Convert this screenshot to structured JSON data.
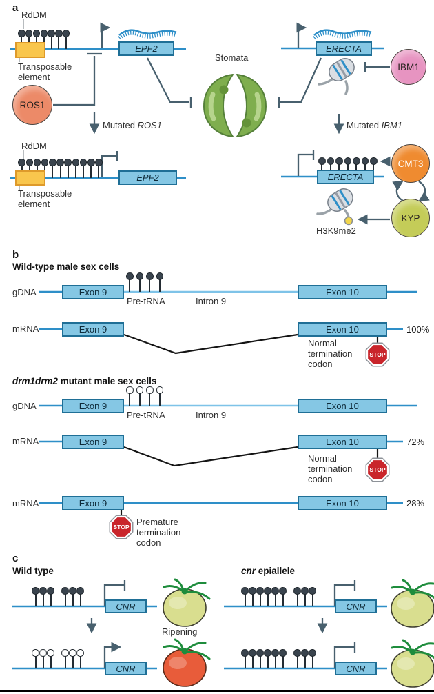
{
  "figure": {
    "panel_a": {
      "label": "a",
      "rddm_label": "RdDM",
      "transposable_element_label": "Transposable element",
      "epf2_gene": "EPF2",
      "erecta_gene": "ERECTA",
      "stomata_label": "Stomata",
      "ros1": "ROS1",
      "ibm1": "IBM1",
      "cmt3": "CMT3",
      "kyp": "KYP",
      "h3k9me2_label": "H3K9me2",
      "mutated_prefix": "Mutated ",
      "mutated_ros1_gene": "ROS1",
      "mutated_ibm1_gene": "IBM1",
      "lollipops": {
        "te_wildtype": {
          "count": 7,
          "filled": true
        },
        "te_mutated": {
          "count": 11,
          "filled": true
        },
        "erecta_mutated": {
          "count": 7,
          "filled": true
        }
      }
    },
    "panel_b": {
      "label": "b",
      "wildtype_title": "Wild-type male sex cells",
      "mutant_title_gene": "drm1drm2",
      "mutant_title_rest": " mutant male sex cells",
      "gdna_label": "gDNA",
      "mrna_label": "mRNA",
      "exon9": "Exon 9",
      "exon10": "Exon 10",
      "pre_trna_label": "Pre-tRNA",
      "intron9_label": "Intron 9",
      "stop": "STOP",
      "normal_termination": "Normal termination codon",
      "premature_termination": "Premature termination codon",
      "pct_wildtype": "100%",
      "pct_normal_splice": "72%",
      "pct_intron_retained": "28%",
      "lollipops": {
        "wildtype": {
          "count": 4,
          "filled": true
        },
        "mutant": {
          "count": 4,
          "filled": false
        }
      }
    },
    "panel_c": {
      "label": "c",
      "wildtype_title": "Wild type",
      "epiallele_gene": "cnr",
      "epiallele_rest": " epiallele",
      "cnr_gene": "CNR",
      "ripening_label": "Ripening",
      "lollipops": {
        "wt_top_1": {
          "count": 3,
          "filled": true
        },
        "wt_top_2": {
          "count": 3,
          "filled": true
        },
        "wt_bottom_1": {
          "count": 3,
          "filled": false
        },
        "wt_bottom_2": {
          "count": 3,
          "filled": false
        },
        "cnr_top_1": {
          "count": 6,
          "filled": true
        },
        "cnr_top_2": {
          "count": 3,
          "filled": true
        },
        "cnr_bottom_1": {
          "count": 6,
          "filled": true
        },
        "cnr_bottom_2": {
          "count": 3,
          "filled": true
        }
      }
    }
  },
  "colors": {
    "dna_blue": "#2E8FC8",
    "intron_light_blue": "#7EC3E8",
    "exon_fill": "#85C7E4",
    "exon_border": "#1F6F96",
    "te_fill": "#F9C64D",
    "te_border": "#DE9A2B",
    "methyl_dark": "#3A444E",
    "arrow": "#48606E",
    "ros1": "#EC8A68",
    "ibm1": "#E794C1",
    "cmt3": "#EF8B30",
    "kyp": "#C4CC58",
    "stop_red": "#C9252B",
    "tomato_green": "#D9DE8F",
    "tomato_red": "#E85C3A",
    "stoma_green": "#7FAE4E",
    "calyx_green": "#1E8C3C",
    "h3k9_yellow": "#F2D64B"
  }
}
